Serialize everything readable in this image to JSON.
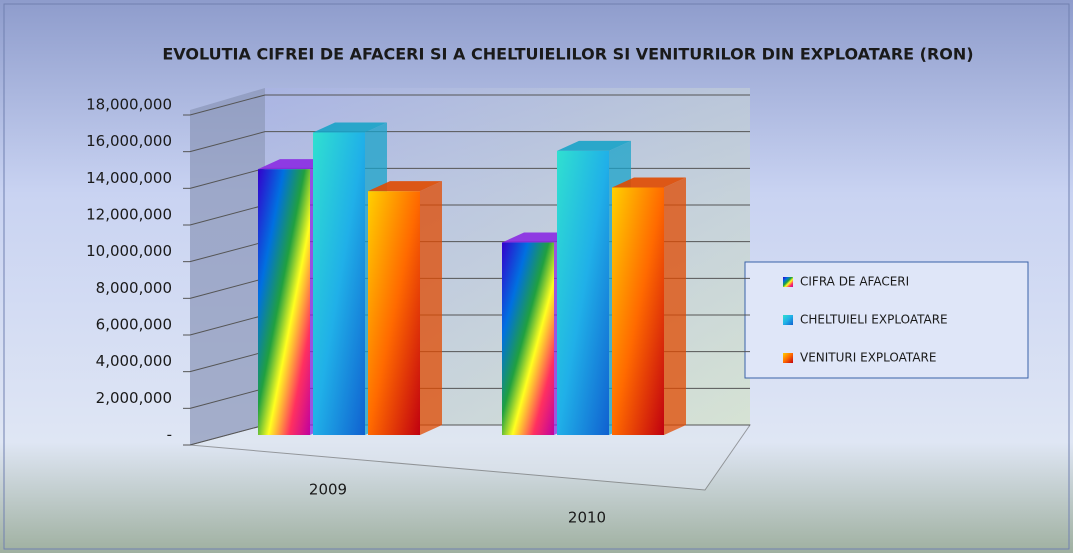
{
  "chart_data": {
    "type": "bar3d",
    "title": "EVOLUTIA  CIFREI DE AFACERI SI A CHELTUIELILOR SI VENITURILOR DIN EXPLOATARE (RON)",
    "categories": [
      "2009",
      "2010"
    ],
    "series": [
      {
        "name": "CIFRA DE AFACERI",
        "color": "#8a2be2",
        "values": [
          14500000,
          10500000
        ]
      },
      {
        "name": "CHELTUIELI EXPLOATARE",
        "color": "#1aa3c8",
        "values": [
          16500000,
          15500000
        ]
      },
      {
        "name": "VENITURI EXPLOATARE",
        "color": "#e04a00",
        "values": [
          13300000,
          13500000
        ]
      }
    ],
    "ylim": [
      0,
      18000000
    ],
    "yticks": [
      {
        "value": 0,
        "label": "-"
      },
      {
        "value": 2000000,
        "label": "2,000,000"
      },
      {
        "value": 4000000,
        "label": "4,000,000"
      },
      {
        "value": 6000000,
        "label": "6,000,000"
      },
      {
        "value": 8000000,
        "label": "8,000,000"
      },
      {
        "value": 10000000,
        "label": "10,000,000"
      },
      {
        "value": 12000000,
        "label": "12,000,000"
      },
      {
        "value": 14000000,
        "label": "14,000,000"
      },
      {
        "value": 16000000,
        "label": "16,000,000"
      },
      {
        "value": 18000000,
        "label": "18,000,000"
      }
    ],
    "grid": true,
    "legend": "right"
  }
}
